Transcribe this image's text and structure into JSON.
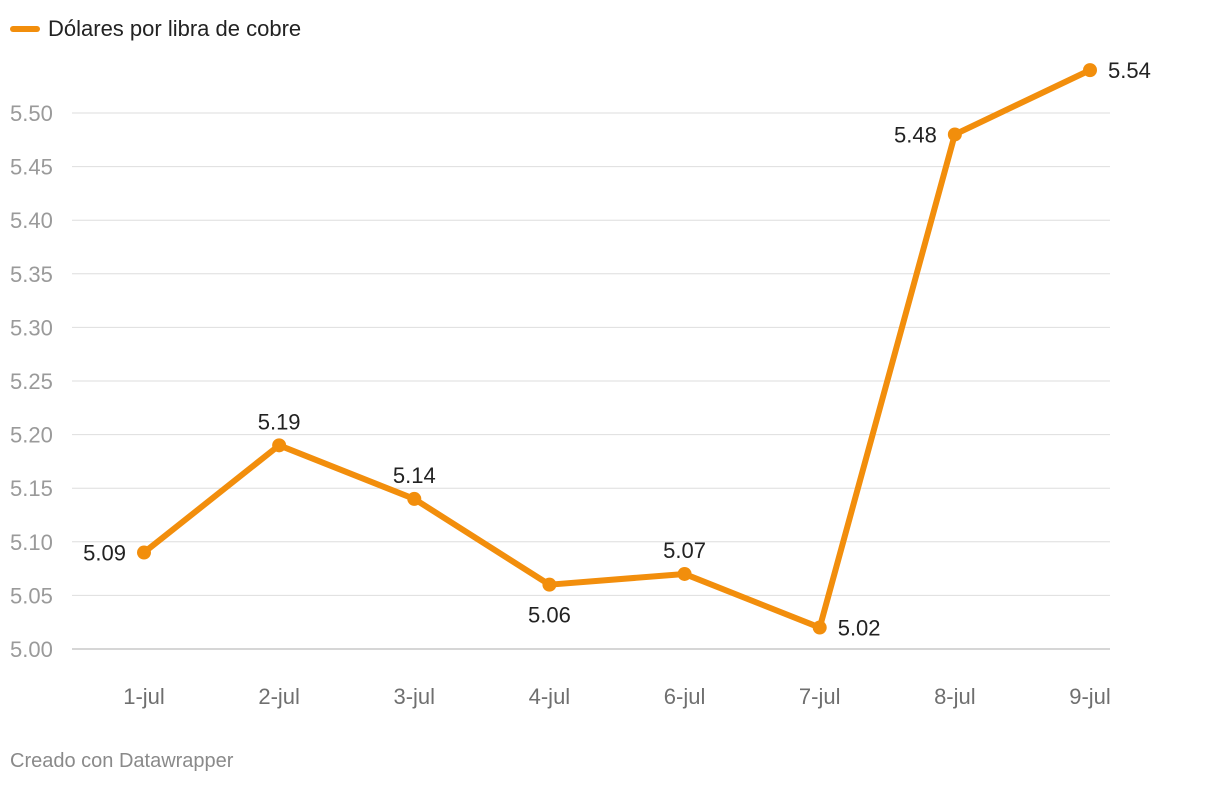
{
  "legend": {
    "label": "Dólares por libra de cobre"
  },
  "footer": {
    "credit": "Creado con Datawrapper"
  },
  "colors": {
    "series": "#F28E0C",
    "grid": "#dedede",
    "axis_text": "#9a9a9a"
  },
  "chart_data": {
    "type": "line",
    "title": "",
    "xlabel": "",
    "ylabel": "",
    "categories": [
      "1-jul",
      "2-jul",
      "3-jul",
      "4-jul",
      "6-jul",
      "7-jul",
      "8-jul",
      "9-jul"
    ],
    "series": [
      {
        "name": "Dólares por libra de cobre",
        "values": [
          5.09,
          5.19,
          5.14,
          5.06,
          5.07,
          5.02,
          5.48,
          5.54
        ]
      }
    ],
    "data_labels": [
      "5.09",
      "5.19",
      "5.14",
      "5.06",
      "5.07",
      "5.02",
      "5.48",
      "5.54"
    ],
    "y_ticks": [
      "5.00",
      "5.05",
      "5.10",
      "5.15",
      "5.20",
      "5.25",
      "5.30",
      "5.35",
      "5.40",
      "5.45",
      "5.50"
    ],
    "ylim": [
      5.0,
      5.5
    ],
    "grid": true,
    "legend_position": "top-left"
  }
}
